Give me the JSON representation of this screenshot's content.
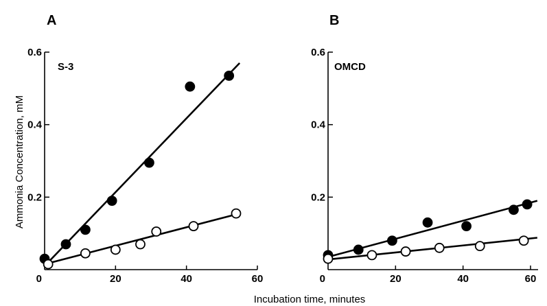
{
  "figure": {
    "ylabel": "Ammonia Concentration, mM",
    "xlabel": "Incubation time, minutes"
  },
  "chart_data": [
    {
      "type": "scatter",
      "panel_label": "A",
      "inset_label": "S-3",
      "xlim": [
        0,
        60
      ],
      "ylim": [
        0,
        0.6
      ],
      "x_ticks": [
        "0",
        "20",
        "40",
        "60"
      ],
      "y_ticks": [
        "0.2",
        "0.4",
        "0.6"
      ],
      "series": [
        {
          "marker": "filled",
          "points": [
            [
              0,
              0.03
            ],
            [
              6,
              0.07
            ],
            [
              11.5,
              0.11
            ],
            [
              19,
              0.19
            ],
            [
              29.5,
              0.295
            ],
            [
              41,
              0.505
            ],
            [
              52,
              0.535
            ]
          ],
          "fit": [
            [
              0,
              0.01
            ],
            [
              55,
              0.57
            ]
          ]
        },
        {
          "marker": "open",
          "points": [
            [
              1,
              0.015
            ],
            [
              11.5,
              0.045
            ],
            [
              20,
              0.055
            ],
            [
              27,
              0.07
            ],
            [
              31.5,
              0.105
            ],
            [
              42,
              0.12
            ],
            [
              54,
              0.155
            ]
          ],
          "fit": [
            [
              0,
              0.015
            ],
            [
              55,
              0.155
            ]
          ]
        }
      ]
    },
    {
      "type": "scatter",
      "panel_label": "B",
      "inset_label": "OMCD",
      "xlim": [
        0,
        60
      ],
      "ylim": [
        0,
        0.6
      ],
      "x_ticks": [
        "0",
        "20",
        "40",
        "60"
      ],
      "y_ticks": [
        "0.2",
        "0.4",
        "0.6"
      ],
      "series": [
        {
          "marker": "filled",
          "points": [
            [
              0,
              0.04
            ],
            [
              9,
              0.055
            ],
            [
              19,
              0.08
            ],
            [
              29.5,
              0.13
            ],
            [
              41,
              0.12
            ],
            [
              55,
              0.165
            ],
            [
              59,
              0.18
            ]
          ],
          "fit": [
            [
              0,
              0.035
            ],
            [
              62,
              0.19
            ]
          ]
        },
        {
          "marker": "open",
          "points": [
            [
              0,
              0.03
            ],
            [
              13,
              0.04
            ],
            [
              23,
              0.05
            ],
            [
              33,
              0.06
            ],
            [
              45,
              0.065
            ],
            [
              58,
              0.08
            ]
          ],
          "fit": [
            [
              0,
              0.028
            ],
            [
              62,
              0.088
            ]
          ]
        }
      ]
    }
  ]
}
